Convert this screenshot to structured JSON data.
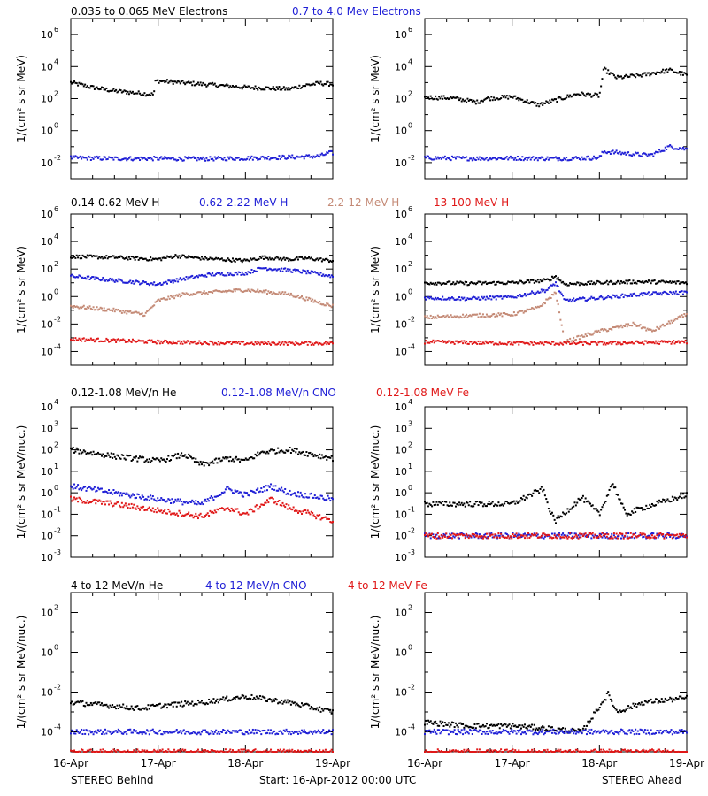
{
  "colors": {
    "black": "#000000",
    "blue": "#1f1fd6",
    "tan": "#c48a76",
    "red": "#e01818"
  },
  "x_axis": {
    "ticks": [
      0,
      1,
      2,
      3
    ],
    "tick_labels": [
      "16-Apr",
      "17-Apr",
      "18-Apr",
      "19-Apr"
    ]
  },
  "footer": {
    "left": "STEREO Behind",
    "center": "Start: 16-Apr-2012 00:00 UTC",
    "right": "STEREO Ahead"
  },
  "rows": [
    {
      "legend": [
        {
          "label": "0.035 to 0.065 MeV Electrons",
          "color": "black"
        },
        {
          "label": "0.7 to 4.0 Mev Electrons",
          "color": "blue"
        }
      ],
      "ylabel": "1/(cm² s sr MeV)",
      "y_log_range": [
        -3,
        7
      ],
      "y_ticks": [
        {
          "exp": -2,
          "label": "-2"
        },
        {
          "exp": 0,
          "label": "0"
        },
        {
          "exp": 2,
          "label": "2"
        },
        {
          "exp": 4,
          "label": "4"
        },
        {
          "exp": 6,
          "label": "6"
        }
      ]
    },
    {
      "legend": [
        {
          "label": "0.14-0.62 MeV H",
          "color": "black"
        },
        {
          "label": "0.62-2.22 MeV H",
          "color": "blue"
        },
        {
          "label": "2.2-12 MeV H",
          "color": "tan"
        },
        {
          "label": "13-100 MeV H",
          "color": "red"
        }
      ],
      "ylabel": "1/(cm² s sr MeV)",
      "y_log_range": [
        -5,
        6
      ],
      "y_ticks": [
        {
          "exp": -4,
          "label": "-4"
        },
        {
          "exp": -2,
          "label": "-2"
        },
        {
          "exp": 0,
          "label": "0"
        },
        {
          "exp": 2,
          "label": "2"
        },
        {
          "exp": 4,
          "label": "4"
        },
        {
          "exp": 6,
          "label": "6"
        }
      ]
    },
    {
      "legend": [
        {
          "label": "0.12-1.08 MeV/n He",
          "color": "black"
        },
        {
          "label": "0.12-1.08 MeV/n CNO",
          "color": "blue"
        },
        {
          "label": "0.12-1.08 MeV Fe",
          "color": "red"
        }
      ],
      "ylabel": "1/(cm² s sr MeV/nuc.)",
      "y_log_range": [
        -3,
        4
      ],
      "y_ticks": [
        {
          "exp": -3,
          "label": "-3"
        },
        {
          "exp": -2,
          "label": "-2"
        },
        {
          "exp": -1,
          "label": "-1"
        },
        {
          "exp": 0,
          "label": "0"
        },
        {
          "exp": 1,
          "label": "1"
        },
        {
          "exp": 2,
          "label": "2"
        },
        {
          "exp": 3,
          "label": "3"
        },
        {
          "exp": 4,
          "label": "4"
        }
      ]
    },
    {
      "legend": [
        {
          "label": "4 to 12 MeV/n He",
          "color": "black"
        },
        {
          "label": "4 to 12 MeV/n CNO",
          "color": "blue"
        },
        {
          "label": "4 to 12 MeV Fe",
          "color": "red"
        }
      ],
      "ylabel": "1/(cm² s sr MeV/nuc.)",
      "y_log_range": [
        -5,
        3
      ],
      "y_ticks": [
        {
          "exp": -4,
          "label": "-4"
        },
        {
          "exp": -2,
          "label": "-2"
        },
        {
          "exp": 0,
          "label": "0"
        },
        {
          "exp": 2,
          "label": "2"
        }
      ]
    }
  ],
  "chart_data": [
    {
      "type": "scatter",
      "panel": "STEREO Behind electrons",
      "x_units": "days since 16-Apr-2012",
      "xlim": [
        0,
        3
      ],
      "y_scale": "log",
      "ylim": [
        0.001,
        10000000
      ],
      "series": [
        {
          "name": "0.035 to 0.065 MeV Electrons",
          "color": "black",
          "x": [
            0,
            0.25,
            0.5,
            0.95,
            0.97,
            1.5,
            2.0,
            2.5,
            2.7,
            2.85,
            3.0
          ],
          "y": [
            1000,
            500,
            300,
            180,
            1300,
            800,
            500,
            400,
            700,
            900,
            800
          ]
        },
        {
          "name": "0.7 to 4.0 Mev Electrons",
          "color": "blue",
          "x": [
            0,
            0.5,
            1.0,
            1.5,
            2.0,
            2.5,
            2.85,
            2.95,
            3.0
          ],
          "y": [
            0.02,
            0.018,
            0.018,
            0.017,
            0.019,
            0.022,
            0.025,
            0.04,
            0.04
          ]
        }
      ]
    },
    {
      "type": "scatter",
      "panel": "STEREO Ahead electrons",
      "x_units": "days since 16-Apr-2012",
      "xlim": [
        0,
        3
      ],
      "y_scale": "log",
      "ylim": [
        0.001,
        10000000
      ],
      "series": [
        {
          "name": "0.035 to 0.065 MeV Electrons",
          "color": "black",
          "x": [
            0,
            0.3,
            0.6,
            0.7,
            1.0,
            1.3,
            1.5,
            1.75,
            2.0,
            2.05,
            2.2,
            2.5,
            2.8,
            3.0
          ],
          "y": [
            120,
            110,
            60,
            100,
            130,
            40,
            80,
            200,
            150,
            7000,
            2000,
            3000,
            6000,
            3000
          ]
        },
        {
          "name": "0.7 to 4.0 Mev Electrons",
          "color": "blue",
          "x": [
            0,
            0.5,
            1.0,
            1.5,
            2.0,
            2.05,
            2.5,
            2.6,
            2.8,
            3.0
          ],
          "y": [
            0.02,
            0.018,
            0.019,
            0.018,
            0.02,
            0.05,
            0.03,
            0.03,
            0.1,
            0.07
          ]
        }
      ]
    },
    {
      "type": "scatter",
      "panel": "STEREO Behind protons",
      "x_units": "days since 16-Apr-2012",
      "xlim": [
        0,
        3
      ],
      "y_scale": "log",
      "ylim": [
        1e-05,
        1000000
      ],
      "series": [
        {
          "name": "0.14-0.62 MeV H",
          "color": "black",
          "x": [
            0,
            0.5,
            1.0,
            1.2,
            1.5,
            2.0,
            2.2,
            2.5,
            2.7,
            3.0
          ],
          "y": [
            800,
            700,
            500,
            900,
            600,
            400,
            700,
            500,
            600,
            400
          ]
        },
        {
          "name": "0.62-2.22 MeV H",
          "color": "blue",
          "x": [
            0,
            0.5,
            1.0,
            1.3,
            1.6,
            2.0,
            2.2,
            2.5,
            2.7,
            3.0
          ],
          "y": [
            30,
            15,
            8,
            20,
            40,
            50,
            120,
            80,
            60,
            30
          ]
        },
        {
          "name": "2.2-12 MeV H",
          "color": "tan",
          "x": [
            0,
            0.5,
            0.85,
            1.0,
            1.3,
            1.6,
            2.0,
            2.5,
            3.0
          ],
          "y": [
            0.2,
            0.1,
            0.05,
            0.5,
            1.5,
            2.0,
            3.0,
            1.5,
            0.2
          ]
        },
        {
          "name": "13-100 MeV H",
          "color": "red",
          "x": [
            0,
            1.0,
            2.0,
            3.0
          ],
          "y": [
            0.0008,
            0.0005,
            0.0004,
            0.0004
          ]
        }
      ]
    },
    {
      "type": "scatter",
      "panel": "STEREO Ahead protons",
      "x_units": "days since 16-Apr-2012",
      "xlim": [
        0,
        3
      ],
      "y_scale": "log",
      "ylim": [
        1e-05,
        1000000
      ],
      "series": [
        {
          "name": "0.14-0.62 MeV H",
          "color": "black",
          "x": [
            0,
            0.5,
            1.0,
            1.4,
            1.5,
            1.6,
            2.0,
            2.5,
            3.0
          ],
          "y": [
            10,
            9,
            10,
            15,
            30,
            8,
            10,
            12,
            10
          ]
        },
        {
          "name": "0.62-2.22 MeV H",
          "color": "blue",
          "x": [
            0,
            0.5,
            1.0,
            1.4,
            1.5,
            1.6,
            2.0,
            2.5,
            3.0
          ],
          "y": [
            0.8,
            0.7,
            0.9,
            3,
            10,
            0.5,
            0.8,
            1.5,
            2
          ]
        },
        {
          "name": "2.2-12 MeV H",
          "color": "tan",
          "x": [
            0,
            0.5,
            1.0,
            1.3,
            1.5,
            1.6,
            2.0,
            2.4,
            2.6,
            3.0
          ],
          "y": [
            0.03,
            0.04,
            0.05,
            0.15,
            2.0,
            0.0005,
            0.003,
            0.01,
            0.003,
            0.05
          ]
        },
        {
          "name": "13-100 MeV H",
          "color": "red",
          "x": [
            0,
            1.0,
            2.0,
            3.0
          ],
          "y": [
            0.0005,
            0.0004,
            0.0004,
            0.0005
          ]
        }
      ]
    },
    {
      "type": "scatter",
      "panel": "STEREO Behind suprathermal ions",
      "x_units": "days since 16-Apr-2012",
      "xlim": [
        0,
        3
      ],
      "y_scale": "log",
      "ylim": [
        0.001,
        10000
      ],
      "series": [
        {
          "name": "0.12-1.08 MeV/n He",
          "color": "black",
          "x": [
            0,
            0.5,
            1.0,
            1.3,
            1.5,
            1.8,
            2.0,
            2.2,
            2.5,
            3.0
          ],
          "y": [
            100,
            50,
            30,
            60,
            20,
            40,
            30,
            80,
            100,
            40
          ]
        },
        {
          "name": "0.12-1.08 MeV/n CNO",
          "color": "blue",
          "x": [
            0,
            0.5,
            1.0,
            1.5,
            1.8,
            2.0,
            2.3,
            2.5,
            3.0
          ],
          "y": [
            2,
            1,
            0.5,
            0.3,
            1.5,
            0.8,
            2,
            1,
            0.5
          ]
        },
        {
          "name": "0.12-1.08 MeV Fe",
          "color": "red",
          "x": [
            0,
            0.5,
            1.0,
            1.5,
            1.8,
            2.0,
            2.3,
            2.5,
            3.0
          ],
          "y": [
            0.5,
            0.3,
            0.15,
            0.08,
            0.2,
            0.1,
            0.5,
            0.2,
            0.05
          ]
        }
      ]
    },
    {
      "type": "scatter",
      "panel": "STEREO Ahead suprathermal ions",
      "x_units": "days since 16-Apr-2012",
      "xlim": [
        0,
        3
      ],
      "y_scale": "log",
      "ylim": [
        0.001,
        10000
      ],
      "series": [
        {
          "name": "0.12-1.08 MeV/n He",
          "color": "black",
          "x": [
            0,
            0.5,
            1.0,
            1.35,
            1.45,
            1.5,
            1.8,
            2.0,
            2.15,
            2.3,
            2.5,
            3.0
          ],
          "y": [
            0.3,
            0.3,
            0.3,
            1.5,
            0.1,
            0.05,
            0.6,
            0.1,
            3.0,
            0.1,
            0.2,
            0.8
          ]
        },
        {
          "name": "0.12-1.08 MeV/n CNO",
          "color": "blue",
          "x": [
            0,
            1.0,
            2.0,
            3.0
          ],
          "y": [
            0.01,
            0.01,
            0.01,
            0.01
          ]
        },
        {
          "name": "0.12-1.08 MeV Fe",
          "color": "red",
          "x": [
            0,
            1.0,
            2.0,
            3.0
          ],
          "y": [
            0.01,
            0.01,
            0.01,
            0.01
          ]
        }
      ]
    },
    {
      "type": "scatter",
      "panel": "STEREO Behind energetic ions",
      "x_units": "days since 16-Apr-2012",
      "xlim": [
        0,
        3
      ],
      "y_scale": "log",
      "ylim": [
        1e-05,
        1000
      ],
      "series": [
        {
          "name": "4 to 12 MeV/n He",
          "color": "black",
          "x": [
            0,
            0.5,
            0.8,
            1.0,
            1.5,
            2.0,
            2.5,
            3.0
          ],
          "y": [
            0.003,
            0.002,
            0.0015,
            0.002,
            0.003,
            0.006,
            0.003,
            0.001
          ]
        },
        {
          "name": "4 to 12 MeV/n CNO",
          "color": "blue",
          "x": [
            0,
            1.0,
            2.0,
            3.0
          ],
          "y": [
            0.0001,
            0.0001,
            0.0001,
            0.0001
          ]
        },
        {
          "name": "4 to 12 MeV Fe",
          "color": "red",
          "x": [
            0,
            1.0,
            2.0,
            3.0
          ],
          "y": [
            1e-05,
            1e-05,
            1e-05,
            1e-05
          ]
        }
      ]
    },
    {
      "type": "scatter",
      "panel": "STEREO Ahead energetic ions",
      "x_units": "days since 16-Apr-2012",
      "xlim": [
        0,
        3
      ],
      "y_scale": "log",
      "ylim": [
        1e-05,
        1000
      ],
      "series": [
        {
          "name": "4 to 12 MeV/n He",
          "color": "black",
          "x": [
            0,
            0.5,
            1.0,
            1.4,
            1.8,
            2.1,
            2.2,
            2.5,
            3.0
          ],
          "y": [
            0.0003,
            0.0002,
            0.0002,
            0.00015,
            0.0001,
            0.008,
            0.001,
            0.003,
            0.005
          ]
        },
        {
          "name": "4 to 12 MeV/n CNO",
          "color": "blue",
          "x": [
            0,
            1.0,
            2.0,
            3.0
          ],
          "y": [
            0.0001,
            0.0001,
            0.0001,
            0.0001
          ]
        },
        {
          "name": "4 to 12 MeV Fe",
          "color": "red",
          "x": [
            0,
            1.0,
            2.0,
            3.0
          ],
          "y": [
            1e-05,
            1e-05,
            1e-05,
            1e-05
          ]
        }
      ]
    }
  ]
}
